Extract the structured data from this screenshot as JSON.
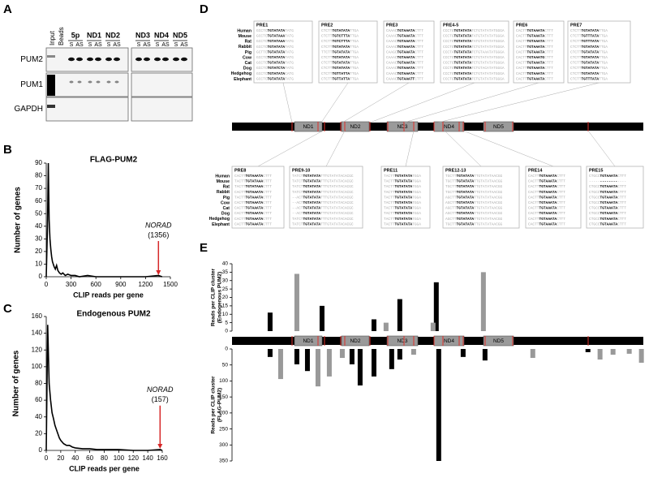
{
  "panel_labels": [
    "A",
    "B",
    "C",
    "D",
    "E"
  ],
  "blot": {
    "lanes": [
      "Input",
      "Beads"
    ],
    "groups": [
      "5p",
      "ND1",
      "ND2",
      "ND3",
      "ND4",
      "ND5"
    ],
    "strands": [
      "S",
      "AS"
    ],
    "rows": [
      "PUM2",
      "PUM1",
      "GAPDH"
    ]
  },
  "norad": {
    "label": "NORAD",
    "domains": [
      "ND1",
      "ND2",
      "ND3",
      "ND4",
      "ND5"
    ]
  },
  "species": [
    "Human",
    "Mouse",
    "Rat",
    "Rabbit",
    "Pig",
    "Cow",
    "Cat",
    "Dog",
    "Hedgehog",
    "Elephant"
  ],
  "pre_boxes": [
    {
      "title": "PRE1",
      "seqs": [
        "GCCTCTGTATATATATG",
        "GCCTCTGTATAAATATG",
        "GCCTCTGTATAAATATG",
        "GCCTCTGTATATATATG",
        "GCTTCTGTATATATATG",
        "GCCTCTGTATATATATG",
        "GCCTCTGTATATATATG",
        "GCCTCTGTATCTATATG",
        "GCCTCTGTATATACATG",
        "GCCTCTGTATATATATG"
      ]
    },
    {
      "title": "PRE2",
      "seqs": [
        "CTCTTTGTATATATTGA",
        "CTCTTTGTCTTTATTGA",
        "CTCTTTGTCTTTATTGA",
        "CTCTTTGTATATATTGA",
        "TTCTTTGTATATATTGA",
        "CTCTTTGTATATATTGA",
        "CTCTTTGTATATATTGA",
        "CTCTTTGTATATATTGA",
        "CTCTTTGTTATTATTGA",
        "CTCTTTGTTATTATTGA"
      ]
    },
    {
      "title": "PRE3",
      "seqs": [
        "CAAACTGTAAATACTTT",
        "CAAACTGTAAATACTTT",
        "CAAACTGTAAATACTTT",
        "CAAACTGTAAATACTTT",
        "CAAGCTGTAAATACTTT",
        "CAAACTGTAAATACTTT",
        "CAAACTGTAAATACTTT",
        "CAAACTGTAAATACTTT",
        "CAAACTGTAAATACTTT",
        "CAAACTGTAAATTCTTT"
      ]
    },
    {
      "title": "PRE4-5",
      "seqs": [
        "CCCTGTGTATATATCTGTATATATGGGA",
        "CCCTGTGTATATATATGTATATATGGGA",
        "CCCTGTGTATATATATGTATATATGGGA",
        "CCCTGTGTATATATCTGTATATATGGGA",
        "CCCTATGTATATATCTGTAAATATGGGA",
        "CCCTGTGTATATATCTGTATATATGGGA",
        "CCCTGTGTATATATCTGTATATATGGGA",
        "CCCTGTGTATATATCTGTACATATGGGA",
        "CCCTGTGTATATATCTGTATATATGGGA",
        "CCCTGTGTATATATCTGTATATATGGGA"
      ]
    },
    {
      "title": "PRE6",
      "seqs": [
        "CACTTTGTAAATACTTT",
        "CACTTTGTAAATACTTT",
        "CACTTTGTAAATACTTT",
        "CACTTTGTAAATACTTT",
        "CACTTTGTAAATACTTT",
        "CACTTTGTAAATGCTTT",
        "CACTTTGTAAATACTTT",
        "CACTTTGTAAATACTTT",
        "CACTTTGTAAATACTTT",
        "CACTTTGTAAATACTTT"
      ]
    },
    {
      "title": "PRE7",
      "seqs": [
        "CTCTTTGTATATATTGA",
        "CTCTTTGTTTATATTGA",
        "CTCTTTGTTTATATTGA",
        "CTCTTTGTATATATTGA",
        "CTCTTTGTATATATTGA",
        "CTCTTTGTATATATTGA",
        "CTCTTTGTATATATTGA",
        "CTCTTTGTATATATTGA",
        "CTCTTTGTATATATTGA",
        "CTCTTTGTTTATATTGA"
      ]
    },
    {
      "title": "PRE8",
      "seqs": [
        "CACTTTGTAAATACTTT",
        "TACTTTGTATAAACTTT",
        "TACTTTGTATAAACTTT",
        "CACTTTGTAAATACTTT",
        "TACTTTGTAAATACTTT",
        "CACTTTGTAAATACTTT",
        "CACTTTGTAAATACTTT",
        "CACTTTGTAAATACTTT",
        "CACTTTGTAAATACTTT",
        "CACTTTGTAAATACTTT"
      ]
    },
    {
      "title": "PRE9-10",
      "seqs": [
        "TATCTTGTATATATTTGTATATACACGC",
        "TATCTTGTATATATTTGTATATACACGC",
        "TATCTTGTATATATTTGTATATACACGC",
        "TATCTTGTATATATTTGTATATACACGC",
        "--ACTTGTATATATTTGTATATACACGC",
        "--ACTTGTATATATTTGTATATACACGC",
        "--ACTTGTATATATTTGTATATACACGC",
        "--ACTTGTATATATTTGTATATACACGC",
        "TATCTTGTATATATTTGTATATACACGC",
        "TATCTTGTATATATTTGTATATACACGC"
      ]
    },
    {
      "title": "PRE11",
      "seqs": [
        "TACTTTGTATATATGGA",
        "TACTTTGTATATATGGA",
        "TACTTTGTATATATGGA",
        "TACTTTGTATATATGGA",
        "TACTTTGTATATATGGA",
        "TACTTTGTATATATGGA",
        "TACTTTGTATATATGGA",
        "TACTTTGTATATATGGA",
        "TACTTTGTATATATGGA",
        "TACTTTGTATATATGGA"
      ]
    },
    {
      "title": "PRE12-13",
      "seqs": [
        "TGCTTTGTATATATTGTATATAACGG",
        "TGCTTTGTATATATTGTATATAACGG",
        "TGCTTTGTATATATTGTATATAACGG",
        "TGCTTTGTATATATTGTATATAACGG",
        "AGCTTTGTATATATTGTATATAACGG",
        "AGCTTTGTATATATTGTATATAACGG",
        "AGCTTTGTATATATTGTATATAACGG",
        "AGCTTTGTATATATTGTATATAACGG",
        "AGCTTTGTATATATTGTATATAACGG",
        "TGCTTTGTATATATTGTATATAACGG"
      ]
    },
    {
      "title": "PRE14",
      "seqs": [
        "CACTTTGTAAATACTTT",
        "CACTTTGTAAATACTTT",
        "CACTTTGTAAATACTTT",
        "CACTTTGTAAATACTTT",
        "CACTTTGTAAATACTTT",
        "CACTTTGTAAATACTTT",
        "CACTTTGTAAATACTTT",
        "CACTTTGTAAATACTTT",
        "CACTTTGTAAATACTTT",
        "CACTTTGTAAATACTTT"
      ]
    },
    {
      "title": "PRE15",
      "seqs": [
        "CTGCCTGTAAATACTTT",
        "-----------------",
        "CTGCCTGTAAATACTTT",
        "CTGCCTGTAAATACTTT",
        "CTGCCTGTAAATACTTT",
        "CTGCCTGTAAATACTTT",
        "CTGCCTGTAAATACTTT",
        "CTGCCTGTAAATACTTT",
        "CTGCCTGTAAATACTTT",
        "CTGCCTGTAAATACTTT"
      ]
    }
  ],
  "chart_data": [
    {
      "type": "line",
      "title": "FLAG-PUM2",
      "x_label": "CLIP reads per gene",
      "y_label": "Number of genes",
      "color": "#000000",
      "x": [
        0,
        15,
        25,
        35,
        45,
        55,
        65,
        75,
        85,
        95,
        110,
        125,
        140,
        160,
        180,
        200,
        230,
        260,
        300,
        350,
        400,
        500,
        600,
        800,
        1000,
        1200,
        1356,
        1400
      ],
      "values": [
        0,
        40,
        90,
        45,
        30,
        22,
        16,
        12,
        10,
        8,
        6,
        9,
        5,
        3,
        2,
        3,
        1,
        2,
        1,
        1,
        0,
        1,
        0,
        0,
        0,
        0,
        1,
        0
      ],
      "xlim": [
        0,
        1500
      ],
      "ylim": [
        0,
        90
      ],
      "xticks": [
        0,
        300,
        600,
        900,
        1200,
        1500
      ],
      "yticks": [
        0,
        10,
        20,
        30,
        40,
        50,
        60,
        70,
        80,
        90
      ],
      "annotation": {
        "text": "NORAD",
        "label": "(1356)",
        "x": 1356,
        "color": "#d62728"
      }
    },
    {
      "type": "line",
      "title": "Endogenous PUM2",
      "x_label": "CLIP reads per gene",
      "y_label": "Number of genes",
      "color": "#000000",
      "x": [
        0,
        2,
        4,
        6,
        8,
        10,
        12,
        14,
        16,
        18,
        20,
        24,
        28,
        32,
        36,
        40,
        50,
        60,
        70,
        80,
        100,
        120,
        140,
        157,
        160
      ],
      "values": [
        0,
        150,
        80,
        60,
        45,
        38,
        30,
        25,
        20,
        15,
        12,
        8,
        6,
        6,
        4,
        3,
        2,
        2,
        1,
        1,
        1,
        0,
        0,
        1,
        0
      ],
      "xlim": [
        0,
        160
      ],
      "ylim": [
        0,
        160
      ],
      "xticks": [
        0,
        20,
        40,
        60,
        80,
        100,
        120,
        140,
        160
      ],
      "yticks": [
        0,
        20,
        40,
        60,
        80,
        100,
        120,
        140,
        160
      ],
      "annotation": {
        "text": "NORAD",
        "label": "(157)",
        "x": 157,
        "color": "#d62728"
      }
    },
    {
      "type": "bar",
      "y_label": [
        "Reads per CLIP cluster",
        "(Endogenous PUM2)"
      ],
      "xlim": [
        0,
        5378
      ],
      "ylim": [
        0,
        40
      ],
      "yticks": [
        0,
        5,
        10,
        15,
        20,
        25,
        30,
        35,
        40
      ],
      "series": [
        {
          "color": "#000000",
          "x": [
            498,
            1177,
            1856,
            2194,
            2671
          ],
          "values": [
            11,
            15,
            7,
            19,
            29
          ]
        },
        {
          "color": "#999999",
          "x": [
            848,
            2014,
            2629,
            3287
          ],
          "values": [
            34,
            5,
            5,
            35
          ]
        }
      ]
    },
    {
      "type": "bar",
      "y_label": [
        "Reads per CLIP cluster",
        "(FLAG-PUM2)"
      ],
      "inverted": true,
      "xlim": [
        0,
        5378
      ],
      "ylim": [
        0,
        350
      ],
      "yticks": [
        0,
        50,
        100,
        150,
        200,
        250,
        300,
        350
      ],
      "series": [
        {
          "color": "#000000",
          "x": [
            498,
            848,
            986,
            1569,
            1675,
            1856,
            2088,
            2194,
            2703,
            3022,
            3308,
            4654
          ],
          "values": [
            25,
            48,
            69,
            48,
            114,
            86,
            63,
            33,
            350,
            25,
            36,
            10
          ]
        },
        {
          "color": "#999999",
          "x": [
            636,
            1124,
            1272,
            1442,
            2375,
            3933,
            4812,
            4982,
            5194,
            5353
          ],
          "values": [
            94,
            117,
            86,
            28,
            18,
            28,
            33,
            18,
            15,
            43
          ]
        }
      ]
    }
  ]
}
